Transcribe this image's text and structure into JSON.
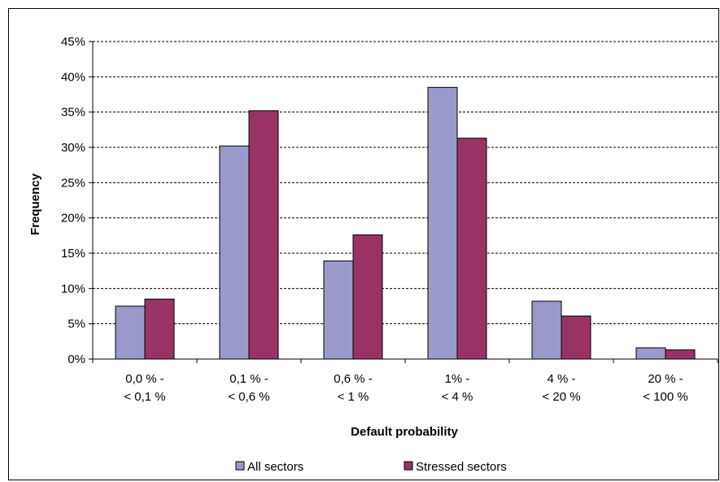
{
  "chart_data": {
    "type": "bar",
    "xlabel": "Default probability",
    "ylabel": "Frequency",
    "ylim": [
      0,
      45
    ],
    "y_ticks": [
      "0%",
      "5%",
      "10%",
      "15%",
      "20%",
      "25%",
      "30%",
      "35%",
      "40%",
      "45%"
    ],
    "categories": [
      [
        "0,0 % -",
        "< 0,1 %"
      ],
      [
        "0,1 % -",
        "< 0,6 %"
      ],
      [
        "0,6 % -",
        "< 1 %"
      ],
      [
        "1% -",
        "< 4 %"
      ],
      [
        "4 % -",
        "< 20 %"
      ],
      [
        "20 % -",
        "< 100 %"
      ]
    ],
    "series": [
      {
        "name": "All sectors",
        "color": "#9999cc",
        "values": [
          7.5,
          30.2,
          13.9,
          38.5,
          8.2,
          1.6
        ]
      },
      {
        "name": "Stressed sectors",
        "color": "#993366",
        "values": [
          8.5,
          35.2,
          17.6,
          31.3,
          6.1,
          1.3
        ]
      }
    ],
    "grid": true,
    "grid_style": "dashed",
    "legend_position": "bottom"
  }
}
